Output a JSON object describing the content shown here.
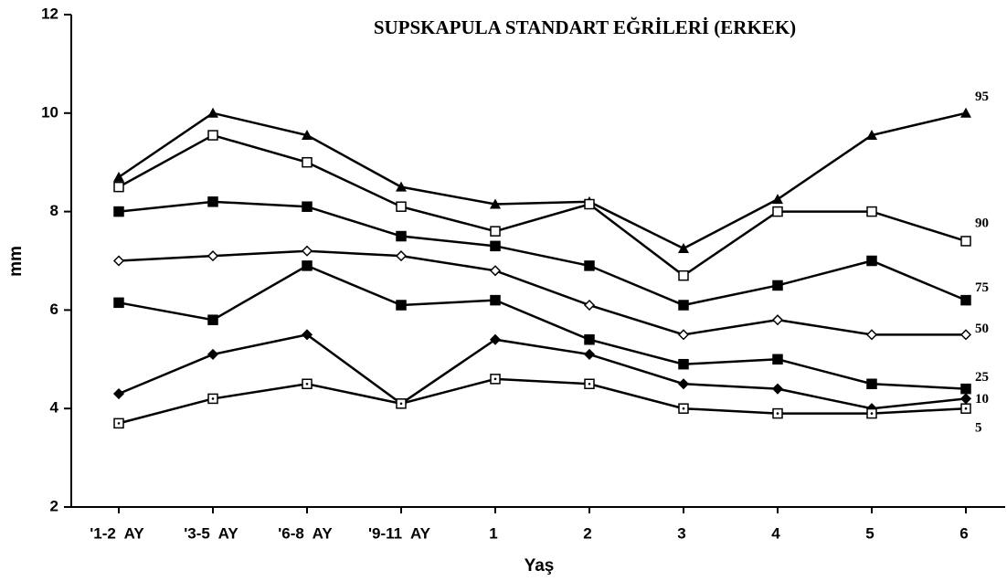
{
  "chart_data": {
    "type": "line",
    "title": "SUPSKAPULA STANDART EĞRİLERİ (ERKEK)",
    "x_label": "Yaş",
    "y_label": "mm",
    "categories": [
      "'1-2  AY",
      "'3-5  AY",
      "'6-8  AY",
      "'9-11  AY",
      "1",
      "2",
      "3",
      "4",
      "5",
      "6"
    ],
    "ylim": [
      2,
      12
    ],
    "yticks": [
      2,
      4,
      6,
      8,
      10,
      12
    ],
    "series": [
      {
        "name": "95",
        "color": "#000000",
        "marker": "triangle",
        "values": [
          8.7,
          10.0,
          9.55,
          8.5,
          8.15,
          8.2,
          7.25,
          8.25,
          9.55,
          10.0
        ]
      },
      {
        "name": "90",
        "color": "#000000",
        "marker": "open-square",
        "values": [
          8.5,
          9.55,
          9.0,
          8.1,
          7.6,
          8.15,
          6.7,
          8.0,
          8.0,
          7.4
        ]
      },
      {
        "name": "75",
        "color": "#000000",
        "marker": "square",
        "values": [
          8.0,
          8.2,
          8.1,
          7.5,
          7.3,
          6.9,
          6.1,
          6.5,
          7.0,
          6.2
        ]
      },
      {
        "name": "50",
        "color": "#000000",
        "marker": "open-diamond",
        "values": [
          7.0,
          7.1,
          7.2,
          7.1,
          6.8,
          6.1,
          5.5,
          5.8,
          5.5,
          5.5
        ]
      },
      {
        "name": "25",
        "color": "#000000",
        "marker": "square",
        "values": [
          6.15,
          5.8,
          6.9,
          6.1,
          6.2,
          5.4,
          4.9,
          5.0,
          4.5,
          4.4
        ]
      },
      {
        "name": "10",
        "color": "#000000",
        "marker": "diamond",
        "values": [
          4.3,
          5.1,
          5.5,
          4.1,
          5.4,
          5.1,
          4.5,
          4.4,
          4.0,
          4.2
        ]
      },
      {
        "name": "5",
        "color": "#000000",
        "marker": "dot-square",
        "values": [
          3.7,
          4.2,
          4.5,
          4.1,
          4.6,
          4.5,
          4.0,
          3.9,
          3.9,
          4.0
        ]
      }
    ]
  }
}
